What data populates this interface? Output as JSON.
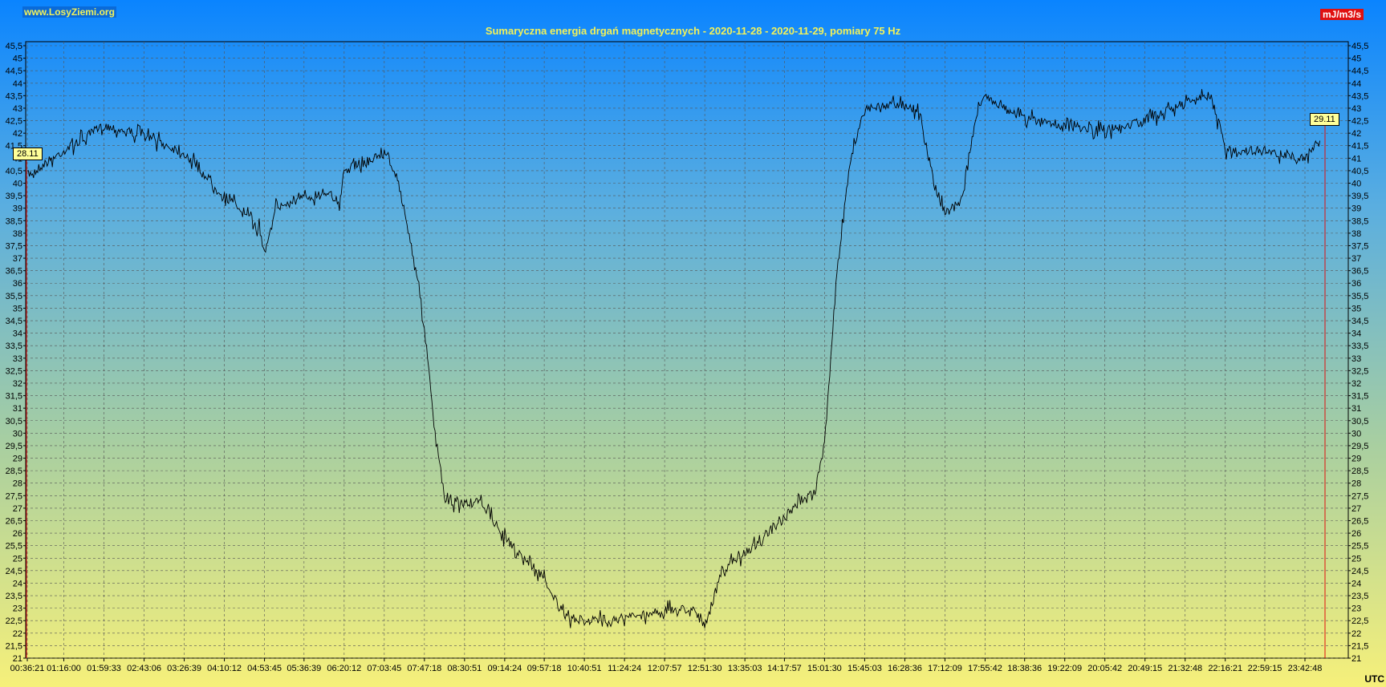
{
  "header": {
    "site": "www.LosyZiemi.org",
    "unit": "mJ/m3/s",
    "title": "Sumaryczna energia drgań magnetycznych - 2020-11-28 - 2020-11-29, pomiary 75 Hz",
    "timezone": "UTC"
  },
  "markers": {
    "start_label": "28.11",
    "end_label": "29.11"
  },
  "colors": {
    "line": "#000000",
    "grid": "#555555",
    "marker": "#e01010",
    "title": "#f2f25a"
  },
  "chart_data": {
    "type": "line",
    "title": "Sumaryczna energia drgań magnetycznych - 2020-11-28 - 2020-11-29, pomiary 75 Hz",
    "ylabel": "mJ/m3/s",
    "xlabel": "UTC",
    "ylim": [
      21,
      45.5
    ],
    "y_ticks": [
      "45,5",
      "45",
      "44,5",
      "44",
      "43,5",
      "43",
      "42,5",
      "42",
      "41,5",
      "41",
      "40,5",
      "40",
      "39,5",
      "39",
      "38,5",
      "38",
      "37,5",
      "37",
      "36,5",
      "36",
      "35,5",
      "35",
      "34,5",
      "34",
      "33,5",
      "33",
      "32,5",
      "32",
      "31,5",
      "31",
      "30,5",
      "30",
      "29,5",
      "29",
      "28,5",
      "28",
      "27,5",
      "27",
      "26,5",
      "26",
      "25,5",
      "25",
      "24,5",
      "24",
      "23,5",
      "23",
      "22,5",
      "22",
      "21,5",
      "21"
    ],
    "x_ticks": [
      "00:36:21",
      "01:16:00",
      "01:59:33",
      "02:43:06",
      "03:26:39",
      "04:10:12",
      "04:53:45",
      "05:36:39",
      "06:20:12",
      "07:03:45",
      "07:47:18",
      "08:30:51",
      "09:14:24",
      "09:57:18",
      "10:40:51",
      "11:24:24",
      "12:07:57",
      "12:51:30",
      "13:35:03",
      "14:17:57",
      "15:01:30",
      "15:45:03",
      "16:28:36",
      "17:12:09",
      "17:55:42",
      "18:38:36",
      "19:22:09",
      "20:05:42",
      "20:49:15",
      "21:32:48",
      "22:16:21",
      "22:59:15",
      "23:42:48"
    ],
    "grid": true,
    "series": [
      {
        "x": [
          "00:36:21",
          "01:16:00",
          "01:59:33",
          "02:43:06",
          "03:26:39",
          "04:10:12",
          "04:30:00",
          "04:48:00",
          "04:53:45",
          "05:05:00",
          "05:36:39",
          "06:05:00",
          "06:15:00",
          "06:20:12",
          "07:03:45",
          "07:10:00",
          "07:25:00",
          "07:40:00",
          "07:47:18",
          "08:00:00",
          "08:05:00",
          "08:10:00",
          "08:30:51",
          "08:50:00",
          "09:14:24",
          "09:57:18",
          "10:20:00",
          "10:40:51",
          "11:24:24",
          "12:07:57",
          "12:40:00",
          "12:51:30",
          "13:10:00",
          "13:35:03",
          "14:17:57",
          "14:40:00",
          "14:50:00",
          "15:01:30",
          "15:15:00",
          "15:30:00",
          "15:45:03",
          "16:28:36",
          "16:45:00",
          "17:00:00",
          "17:12:09",
          "17:30:00",
          "17:45:00",
          "17:55:42",
          "18:38:36",
          "19:22:09",
          "20:05:42",
          "20:49:15",
          "21:32:48",
          "22:00:00",
          "22:10:00",
          "22:16:21",
          "22:59:15",
          "23:42:48",
          "23:59:00"
        ],
        "y": [
          40.3,
          41.3,
          42.3,
          41.9,
          41.2,
          39.5,
          38.9,
          38.2,
          37.2,
          39.0,
          39.4,
          39.7,
          39.0,
          40.5,
          41.2,
          41.0,
          39.0,
          36.2,
          34.2,
          29.5,
          28.5,
          27.2,
          27.2,
          27.2,
          25.8,
          24.2,
          22.6,
          22.5,
          22.6,
          22.9,
          23.0,
          22.2,
          24.5,
          25.2,
          26.5,
          27.5,
          27.5,
          29.5,
          36.5,
          41.0,
          43.0,
          43.2,
          42.8,
          40.0,
          38.8,
          39.3,
          42.5,
          43.5,
          42.6,
          42.3,
          42.1,
          42.5,
          43.2,
          43.5,
          42.3,
          41.3,
          41.3,
          41.0,
          41.7
        ]
      }
    ]
  }
}
